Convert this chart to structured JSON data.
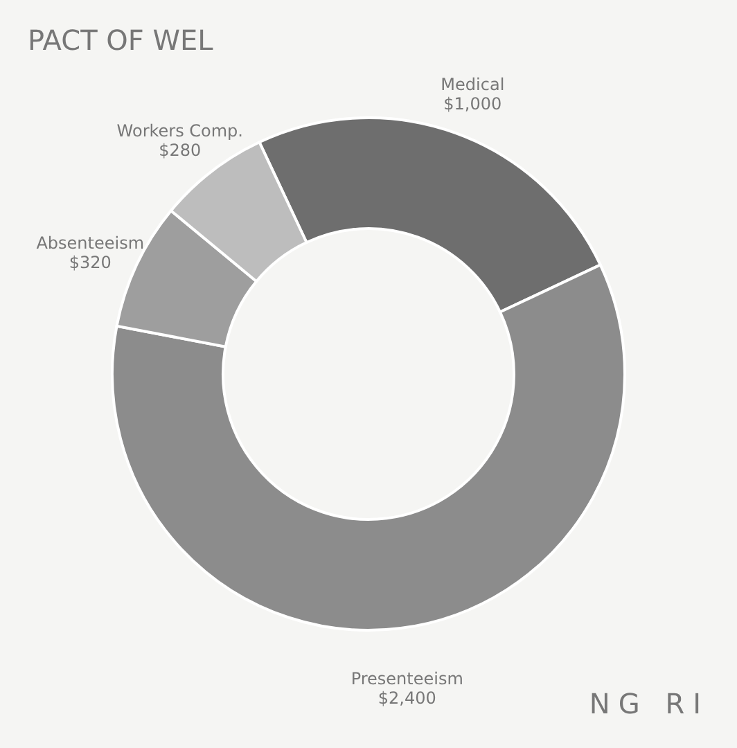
{
  "chart_data": {
    "type": "donut",
    "title": "PACT OF WEL",
    "categories": [
      "Medical",
      "Presenteeism",
      "Absenteeism",
      "Workers Comp."
    ],
    "values": [
      1000,
      2400,
      320,
      280
    ],
    "value_labels": [
      "$1,000",
      "$2,400",
      "$320",
      "$280"
    ],
    "colors": [
      "#6e6e6e",
      "#8c8c8c",
      "#9e9e9e",
      "#bdbdbd"
    ],
    "annotations": [
      "NG RI"
    ],
    "legend": false
  }
}
